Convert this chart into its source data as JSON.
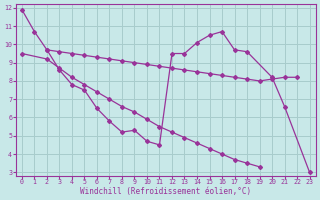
{
  "background_color": "#c8e8e8",
  "grid_color": "#a8cccc",
  "line_color": "#993399",
  "xlabel": "Windchill (Refroidissement éolien,°C)",
  "xlim": [
    -0.5,
    23.5
  ],
  "ylim": [
    2.8,
    12.2
  ],
  "yticks": [
    3,
    4,
    5,
    6,
    7,
    8,
    9,
    10,
    11,
    12
  ],
  "xticks": [
    0,
    1,
    2,
    3,
    4,
    5,
    6,
    7,
    8,
    9,
    10,
    11,
    12,
    13,
    14,
    15,
    16,
    17,
    18,
    19,
    20,
    21,
    22,
    23
  ],
  "lines": [
    {
      "x": [
        0,
        1,
        2,
        3,
        4,
        5,
        6,
        7,
        8,
        9,
        10,
        11,
        12,
        13,
        14,
        15,
        16,
        17,
        18,
        20,
        21,
        23
      ],
      "y": [
        11.9,
        10.7,
        9.7,
        8.6,
        7.8,
        7.5,
        6.5,
        5.8,
        5.2,
        5.3,
        4.7,
        4.5,
        9.5,
        9.5,
        10.1,
        10.5,
        10.7,
        9.7,
        9.6,
        8.2,
        6.6,
        3.0
      ]
    },
    {
      "x": [
        2,
        3,
        4,
        5,
        6,
        7,
        8,
        9,
        10,
        11,
        12,
        13,
        14,
        15,
        16,
        17,
        18,
        19,
        20,
        21,
        22
      ],
      "y": [
        9.7,
        9.6,
        9.5,
        9.4,
        9.3,
        9.2,
        9.1,
        9.0,
        8.9,
        8.8,
        8.7,
        8.6,
        8.5,
        8.4,
        8.3,
        8.2,
        8.1,
        8.0,
        8.1,
        8.2,
        8.2
      ]
    },
    {
      "x": [
        0,
        2,
        3,
        4,
        5,
        6,
        7,
        8,
        9,
        10,
        11,
        12,
        13,
        14,
        15,
        16,
        17,
        18,
        19,
        20,
        21,
        22,
        23
      ],
      "y": [
        9.5,
        9.2,
        8.7,
        8.2,
        7.8,
        7.4,
        7.0,
        6.6,
        6.3,
        5.9,
        5.5,
        5.2,
        4.9,
        4.6,
        4.3,
        4.0,
        3.7,
        3.5,
        3.3,
        null,
        null,
        null,
        null
      ]
    }
  ]
}
